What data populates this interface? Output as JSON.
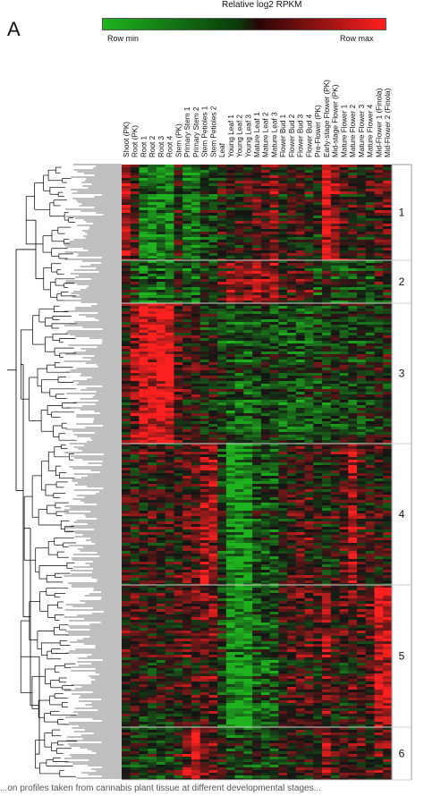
{
  "panel_label": "A",
  "legend": {
    "title": "Relative log2 RPKM",
    "min_label": "Row min",
    "max_label": "Row max",
    "colors": {
      "min": "#1fb41f",
      "mid": "#141414",
      "max": "#ff2020"
    }
  },
  "caption_snippet": "...on profiles taken from cannabis plant tissue at different developmental stages...",
  "chart_data": {
    "type": "heatmap",
    "columns": [
      "Shoot (PK)",
      "Root (PK)",
      "Root 1",
      "Root 2",
      "Root 3",
      "Root 4",
      "Stem (PK)",
      "Primary Stem 1",
      "Primary Stem 2",
      "Stem Petioles 1",
      "Stem Petioles 2",
      "Leaf",
      "Young Leaf 1",
      "Young Leaf 2",
      "Young Leaf 3",
      "Mature Leaf 1",
      "Mature Leaf 2",
      "Mature Leaf 3",
      "Flower Bud 1",
      "Flower Bud 2",
      "Flower Bud 3",
      "Flower Bud 4",
      "Pre-Flower (PK)",
      "Early-stage Flower (PK)",
      "Mid-stage Flower (PK)",
      "Mature Flower 1",
      "Mature Flower 2",
      "Mature Flower 3",
      "Mature Flower 4",
      "Mid-Flower 1 (Finola)",
      "Mid-Flower 2 (Finola)"
    ],
    "clusters": [
      {
        "label": "1",
        "profile": [
          0.7,
          0.2,
          -0.7,
          -0.7,
          -0.7,
          -0.7,
          0.1,
          -0.6,
          -0.6,
          -0.2,
          -0.2,
          0.0,
          0.1,
          0.1,
          0.1,
          0.3,
          0.3,
          0.3,
          0.0,
          0.1,
          0.1,
          0.0,
          -0.1,
          0.9,
          0.5,
          0.2,
          0.1,
          0.1,
          0.1,
          0.2,
          0.3
        ]
      },
      {
        "label": "2",
        "profile": [
          0.2,
          -0.2,
          -0.5,
          -0.5,
          -0.5,
          -0.5,
          -0.1,
          -0.4,
          -0.4,
          0.0,
          0.0,
          0.2,
          0.4,
          0.4,
          0.4,
          0.6,
          0.6,
          0.6,
          0.2,
          0.2,
          0.2,
          0.1,
          -0.3,
          0.0,
          -0.2,
          -0.3,
          -0.3,
          -0.3,
          -0.3,
          0.0,
          0.0
        ]
      },
      {
        "label": "3",
        "profile": [
          0.1,
          0.5,
          0.9,
          0.9,
          0.9,
          0.9,
          0.2,
          0.1,
          0.1,
          -0.1,
          -0.1,
          -0.2,
          -0.4,
          -0.4,
          -0.4,
          -0.3,
          -0.3,
          -0.3,
          -0.4,
          -0.4,
          -0.4,
          -0.4,
          -0.2,
          -0.3,
          -0.2,
          -0.2,
          -0.2,
          -0.2,
          -0.2,
          -0.1,
          -0.1
        ]
      },
      {
        "label": "4",
        "profile": [
          0.1,
          0.0,
          0.1,
          0.1,
          0.1,
          0.1,
          0.1,
          0.3,
          0.3,
          0.6,
          0.6,
          -0.2,
          -0.8,
          -0.8,
          -0.8,
          -0.3,
          -0.3,
          -0.3,
          0.0,
          0.1,
          0.2,
          0.2,
          0.0,
          -0.1,
          0.1,
          0.2,
          0.7,
          0.2,
          0.1,
          0.1,
          0.0
        ]
      },
      {
        "label": "5",
        "profile": [
          0.1,
          0.2,
          0.0,
          0.0,
          0.0,
          0.0,
          0.1,
          0.2,
          0.2,
          0.3,
          0.3,
          -0.2,
          -0.8,
          -0.8,
          -0.8,
          -0.4,
          -0.4,
          -0.4,
          0.1,
          0.2,
          0.2,
          0.2,
          0.1,
          0.4,
          0.1,
          0.1,
          0.2,
          0.2,
          0.2,
          0.8,
          0.8
        ]
      },
      {
        "label": "6",
        "profile": [
          0.0,
          -0.1,
          -0.2,
          -0.2,
          -0.2,
          -0.2,
          0.0,
          0.4,
          0.8,
          0.3,
          0.3,
          0.0,
          -0.3,
          -0.3,
          -0.3,
          -0.2,
          -0.2,
          -0.2,
          0.0,
          0.0,
          0.0,
          0.0,
          0.1,
          0.5,
          0.1,
          0.1,
          0.1,
          0.1,
          0.1,
          0.2,
          0.2
        ]
      }
    ],
    "xlabel": "",
    "ylabel": ""
  }
}
